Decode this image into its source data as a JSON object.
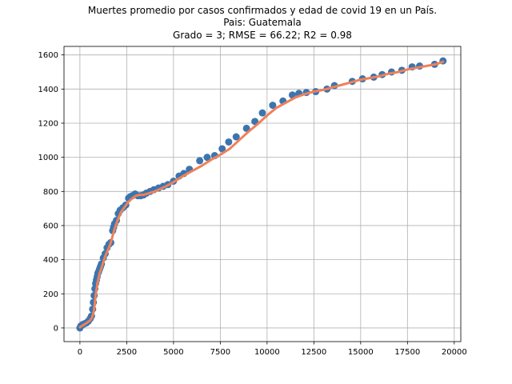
{
  "chart_data": {
    "type": "scatter",
    "title_lines": [
      "Muertes promedio por casos confirmados y edad de covid 19 en un País.",
      "Pais: Guatemala",
      "Grado = 3; RMSE = 66.22; R2 = 0.98"
    ],
    "xlabel": "",
    "ylabel": "",
    "xlim": [
      -850,
      20350
    ],
    "ylim": [
      -80,
      1650
    ],
    "xticks": [
      0,
      2500,
      5000,
      7500,
      10000,
      12500,
      15000,
      17500,
      20000
    ],
    "yticks": [
      0,
      200,
      400,
      600,
      800,
      1000,
      1200,
      1400,
      1600
    ],
    "grid": true,
    "colors": {
      "points": "#3b75af",
      "fit": "#f08058"
    },
    "series": [
      {
        "type": "scatter",
        "x": [
          0,
          50,
          150,
          250,
          350,
          450,
          550,
          620,
          680,
          720,
          760,
          800,
          840,
          880,
          920,
          960,
          1000,
          1050,
          1100,
          1150,
          1250,
          1350,
          1450,
          1550,
          1650,
          1750,
          1800,
          1850,
          1950,
          2050,
          2150,
          2300,
          2450,
          2600,
          2700,
          2800,
          2950,
          3100,
          3250,
          3400,
          3550,
          3750,
          3950,
          4200,
          4450,
          4700,
          5000,
          5300,
          5550,
          5850,
          6400,
          6800,
          7200,
          7600,
          7950,
          8350,
          8900,
          9350,
          9750,
          10300,
          10850,
          11350,
          11700,
          12100,
          12600,
          13200,
          13600,
          14550,
          15100,
          15700,
          16150,
          16650,
          17200,
          17750,
          18150,
          18950,
          19400
        ],
        "y": [
          0,
          12,
          20,
          25,
          30,
          40,
          55,
          70,
          110,
          150,
          190,
          230,
          260,
          280,
          300,
          320,
          330,
          345,
          360,
          375,
          410,
          435,
          470,
          490,
          500,
          570,
          590,
          610,
          630,
          670,
          690,
          705,
          720,
          760,
          770,
          775,
          785,
          775,
          775,
          780,
          790,
          800,
          810,
          820,
          830,
          840,
          860,
          890,
          905,
          930,
          980,
          1000,
          1010,
          1050,
          1090,
          1120,
          1170,
          1210,
          1260,
          1305,
          1330,
          1365,
          1375,
          1380,
          1385,
          1400,
          1420,
          1445,
          1460,
          1470,
          1485,
          1500,
          1510,
          1530,
          1535,
          1545,
          1565
        ]
      },
      {
        "type": "line",
        "x": [
          0,
          200,
          400,
          550,
          650,
          750,
          850,
          950,
          1050,
          1150,
          1250,
          1350,
          1450,
          1550,
          1650,
          1750,
          1850,
          1950,
          2050,
          2200,
          2400,
          2600,
          2800,
          3000,
          3200,
          3400,
          3700,
          4000,
          4300,
          4600,
          5000,
          5500,
          6000,
          6500,
          7000,
          7500,
          8000,
          8500,
          9000,
          9500,
          10000,
          10500,
          11000,
          11500,
          12000,
          12500,
          13000,
          13500,
          14000,
          14500,
          15000,
          15500,
          16000,
          16500,
          17000,
          17500,
          18000,
          18500,
          19000,
          19400
        ],
        "y": [
          5,
          18,
          32,
          45,
          60,
          100,
          200,
          270,
          320,
          350,
          385,
          420,
          445,
          470,
          500,
          540,
          580,
          610,
          640,
          680,
          710,
          740,
          760,
          775,
          780,
          780,
          790,
          800,
          815,
          830,
          855,
          890,
          920,
          950,
          985,
          1015,
          1050,
          1100,
          1150,
          1195,
          1245,
          1290,
          1320,
          1350,
          1370,
          1385,
          1395,
          1410,
          1425,
          1440,
          1455,
          1465,
          1475,
          1490,
          1500,
          1515,
          1525,
          1535,
          1545,
          1560
        ]
      }
    ]
  }
}
